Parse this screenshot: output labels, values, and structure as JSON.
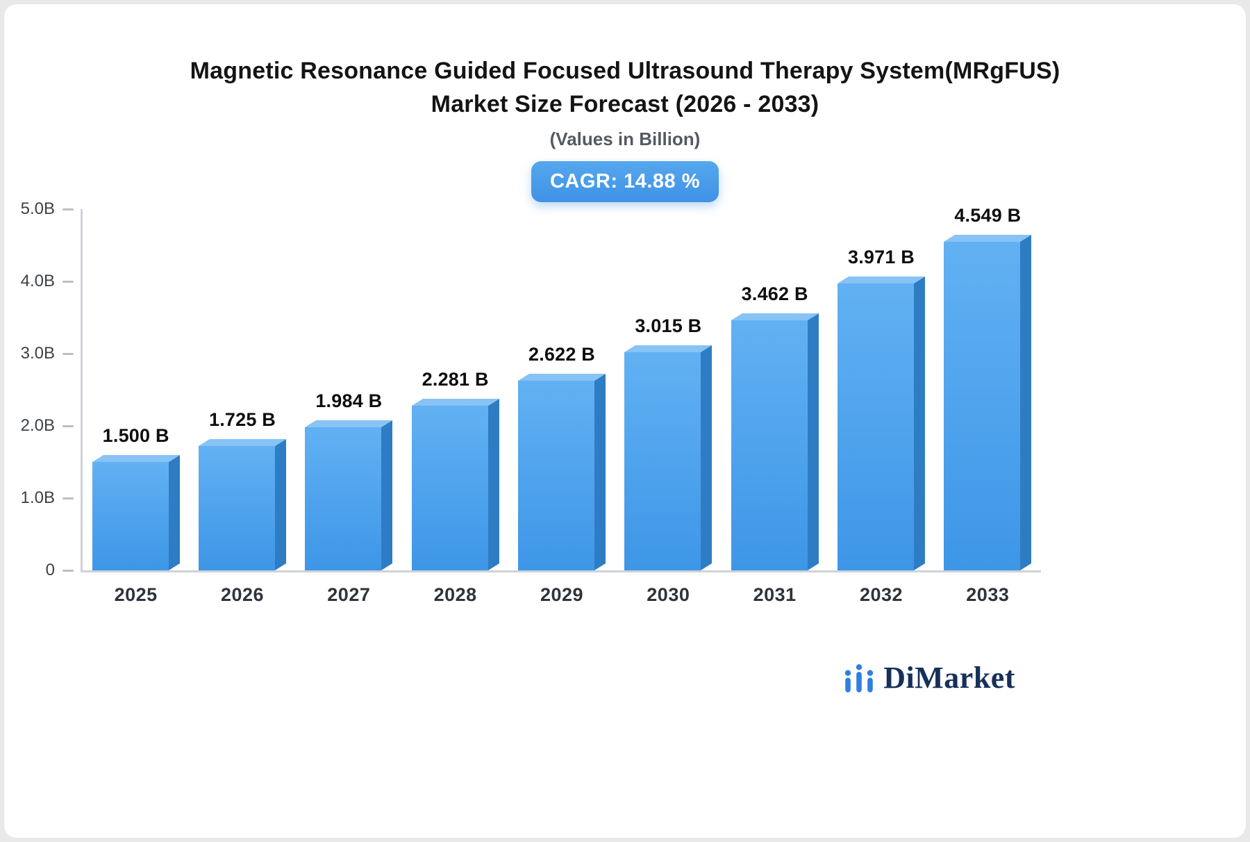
{
  "page": {
    "title_line1": "Magnetic Resonance Guided Focused Ultrasound Therapy System(MRgFUS)",
    "title_line2": "Market Size Forecast (2026 - 2033)",
    "subtitle": "(Values in Billion)",
    "cagr_label": "CAGR: 14.88 %"
  },
  "brand": {
    "name": "DiMarket",
    "icon": "bar-chart-logo-icon",
    "icon_color": "#2e7fe1",
    "text_color": "#16305a"
  },
  "chart_data": {
    "type": "bar",
    "title": "Magnetic Resonance Guided Focused Ultrasound Therapy System(MRgFUS) Market Size Forecast (2026 - 2033)",
    "subtitle": "(Values in Billion)",
    "annotation": "CAGR: 14.88 %",
    "categories": [
      "2025",
      "2026",
      "2027",
      "2028",
      "2029",
      "2030",
      "2031",
      "2032",
      "2033"
    ],
    "values": [
      1.5,
      1.725,
      1.984,
      2.281,
      2.622,
      3.015,
      3.462,
      3.971,
      4.549
    ],
    "labels": [
      "1.500 B",
      "1.725 B",
      "1.984 B",
      "2.281 B",
      "2.622 B",
      "3.015 B",
      "3.462 B",
      "3.971 B",
      "4.549 B"
    ],
    "xlabel": "",
    "ylabel": "",
    "ylim": [
      0,
      5.0
    ],
    "yticks": [
      {
        "value": 5.0,
        "label": "5.0B"
      },
      {
        "value": 4.0,
        "label": "4.0B"
      },
      {
        "value": 3.0,
        "label": "3.0B"
      },
      {
        "value": 2.0,
        "label": "2.0B"
      },
      {
        "value": 1.0,
        "label": "1.0B"
      },
      {
        "value": 0,
        "label": "0"
      }
    ],
    "grid": false,
    "legend": false,
    "colors": {
      "bar_front_top": "#61b1f3",
      "bar_front_bottom": "#3e96e7",
      "bar_side": "#2e7dc4",
      "bar_top": "#87c3f5",
      "axis": "#cdd2d8"
    }
  }
}
